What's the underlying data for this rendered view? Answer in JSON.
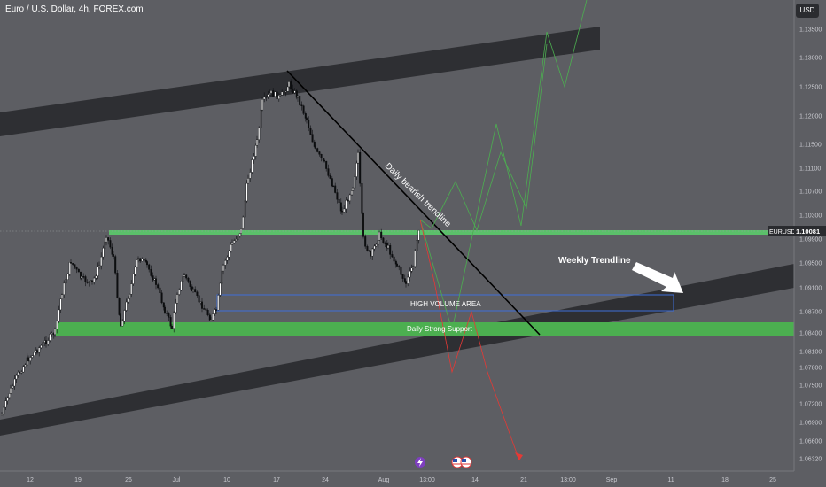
{
  "header": {
    "title": "Euro / U.S. Dollar, 4h, FOREX.com",
    "currency": "USD"
  },
  "price_tag": {
    "symbol": "EURUSD",
    "price": "1.10081"
  },
  "annotations": {
    "bearish_trendline": "Daily bearish trendline",
    "weekly_trendline": "Weekly Trendline",
    "high_volume": "HIGH VOLUME AREA",
    "strong_support": "Daily Strong Support"
  },
  "colors": {
    "background": "#5d5e63",
    "support_zone": "#4caf50",
    "channel": "#2a2b2f",
    "projection_up": "#4caf50",
    "projection_down": "#e53935",
    "trendline": "#000000"
  },
  "icons": [
    "lightning-event-icon",
    "us-flag-icon",
    "eu-flag-icon"
  ],
  "chart_data": {
    "type": "candlestick",
    "symbol": "EURUSD",
    "timeframe": "4h",
    "y_axis_ticks": [
      "1.13500",
      "1.13000",
      "1.12500",
      "1.12000",
      "1.11500",
      "1.11100",
      "1.10700",
      "1.10300",
      "1.09900",
      "1.09500",
      "1.09100",
      "1.08700",
      "1.08400",
      "1.08100",
      "1.07800",
      "1.07500",
      "1.07200",
      "1.06900",
      "1.06600",
      "1.06320"
    ],
    "x_axis_ticks": [
      "12",
      "19",
      "26",
      "Jul",
      "10",
      "17",
      "24",
      "Aug",
      "13:00",
      "14",
      "21",
      "13:00",
      "Sep",
      "11",
      "18",
      "25"
    ],
    "current_price": 1.10081,
    "support_zone_price": 1.0845,
    "resistance_line_price": 1.1008
  }
}
